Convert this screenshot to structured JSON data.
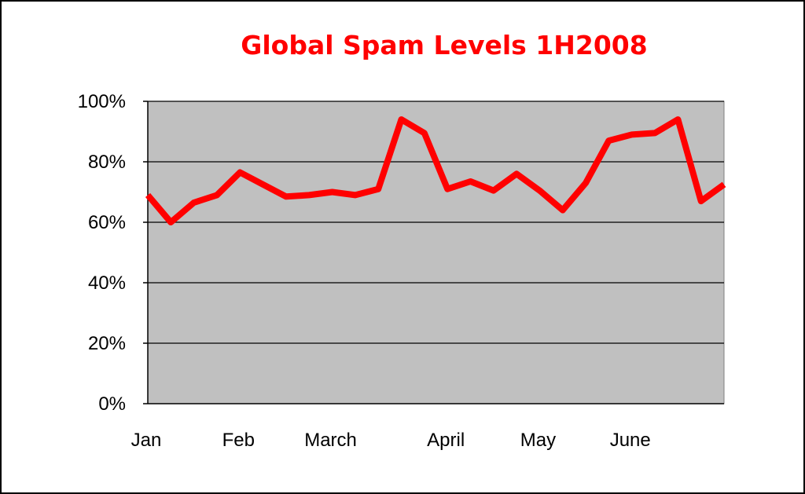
{
  "chart_data": {
    "type": "line",
    "title": "Global Spam Levels 1H2008",
    "xlabel": "",
    "ylabel": "",
    "ylim": [
      0,
      100
    ],
    "yticks": [
      "0%",
      "20%",
      "40%",
      "60%",
      "80%",
      "100%"
    ],
    "ytick_values": [
      0,
      20,
      40,
      60,
      80,
      100
    ],
    "xticks": [
      "Jan",
      "Feb",
      "March",
      "April",
      "May",
      "June"
    ],
    "xtick_positions": [
      0,
      4,
      8,
      13,
      17,
      21
    ],
    "grid": "horizontal",
    "legend": "none",
    "series": [
      {
        "color": "#ff0000",
        "x": [
          0,
          1,
          2,
          3,
          4,
          5,
          6,
          7,
          8,
          9,
          10,
          11,
          12,
          13,
          14,
          15,
          16,
          17,
          18,
          19,
          20,
          21,
          22,
          23,
          24,
          25
        ],
        "values": [
          69,
          60,
          66.5,
          69,
          76.5,
          72.5,
          68.5,
          69,
          70,
          69,
          71,
          94,
          89.5,
          71,
          73.5,
          70.5,
          76,
          70.5,
          64,
          73,
          87,
          89,
          89.5,
          94,
          67,
          72.5
        ]
      }
    ],
    "colors": {
      "plot_background": "#c0c0c0",
      "line": "#ff0000",
      "title": "#ff0000"
    }
  }
}
